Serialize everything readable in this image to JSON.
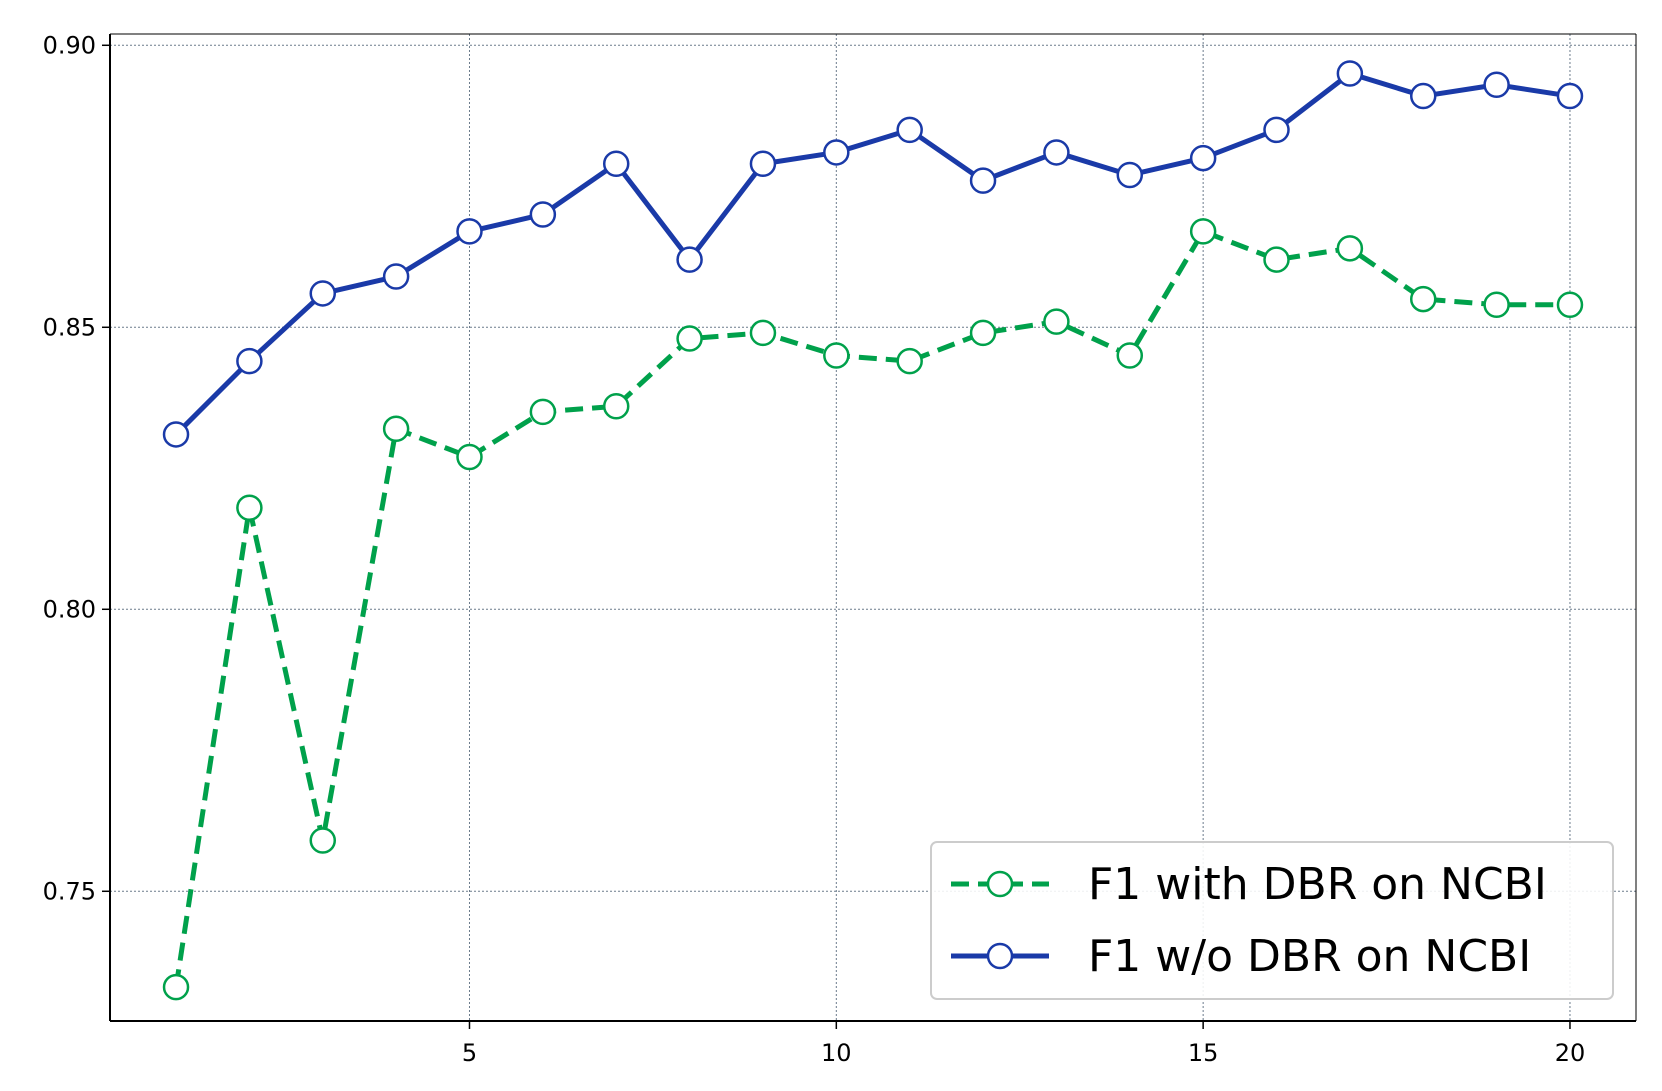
{
  "chart_data": {
    "type": "line",
    "title": "",
    "xlabel": "",
    "ylabel": "",
    "x": [
      1,
      2,
      3,
      4,
      5,
      6,
      7,
      8,
      9,
      10,
      11,
      12,
      13,
      14,
      15,
      16,
      17,
      18,
      19,
      20
    ],
    "xlim": [
      0.1,
      20.9
    ],
    "ylim": [
      0.727,
      0.902
    ],
    "xticks": [
      5,
      10,
      15,
      20
    ],
    "yticks": [
      0.75,
      0.8,
      0.85,
      0.9
    ],
    "xtick_labels": [
      "5",
      "10",
      "15",
      "20"
    ],
    "ytick_labels": [
      "0.75",
      "0.80",
      "0.85",
      "0.90"
    ],
    "grid": true,
    "legend_position": "lower-right",
    "series": [
      {
        "name": "F1 with DBR on NCBI",
        "color": "#00a14b",
        "line_style": "dashed",
        "marker": "open-circle",
        "values": [
          0.733,
          0.818,
          0.759,
          0.832,
          0.827,
          0.835,
          0.836,
          0.848,
          0.849,
          0.845,
          0.844,
          0.849,
          0.851,
          0.845,
          0.867,
          0.862,
          0.864,
          0.855,
          0.854,
          0.854
        ]
      },
      {
        "name": "F1 w/o DBR on NCBI",
        "color": "#1a3aa8",
        "line_style": "solid",
        "marker": "open-circle",
        "values": [
          0.831,
          0.844,
          0.856,
          0.859,
          0.867,
          0.87,
          0.879,
          0.862,
          0.879,
          0.881,
          0.885,
          0.876,
          0.881,
          0.877,
          0.88,
          0.885,
          0.895,
          0.891,
          0.893,
          0.891
        ]
      }
    ]
  }
}
